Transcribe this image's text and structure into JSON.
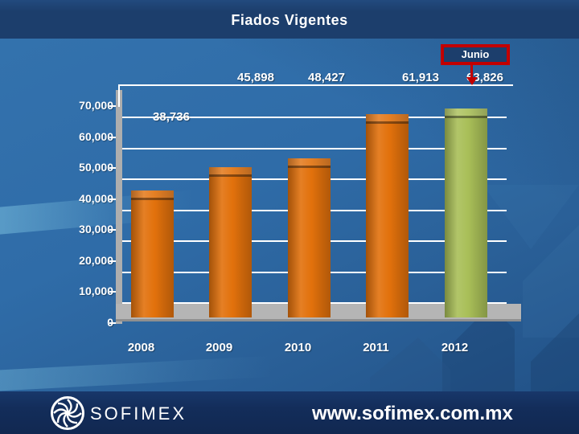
{
  "slide": {
    "title": "Fiados Vigentes"
  },
  "callout": {
    "label": "Junio"
  },
  "chart_data": {
    "type": "bar",
    "title": "Fiados Vigentes",
    "categories": [
      "2008",
      "2009",
      "2010",
      "2011",
      "2012"
    ],
    "values": [
      38736,
      45898,
      48427,
      61913,
      63826
    ],
    "value_labels": [
      "38,736",
      "45,898",
      "48,427",
      "61,913",
      "63,826"
    ],
    "annotation": "Junio",
    "annotation_points_to": "63,826",
    "xlabel": "",
    "ylabel": "",
    "ylim": [
      0,
      70000
    ],
    "ytick_step": 10000,
    "ytick_labels": [
      "0",
      "10,000",
      "20,000",
      "30,000",
      "40,000",
      "50,000",
      "60,000",
      "70,000"
    ],
    "grid": true,
    "legend": false,
    "bar_colors": [
      "#e2710c",
      "#e2710c",
      "#e2710c",
      "#e2710c",
      "#a9bf58"
    ],
    "highlight_index": 4
  },
  "colors": {
    "bar_orange": "#e2710c",
    "bar_green": "#a9bf58",
    "callout_red": "#c20000",
    "header_navy": "#1c3e6c",
    "footer_navy": "#132d5a",
    "grid_white": "#ffffff",
    "floor_gray": "#b5b5b5"
  },
  "footer": {
    "brand": "SOFIMEX",
    "url": "www.sofimex.com.mx"
  }
}
